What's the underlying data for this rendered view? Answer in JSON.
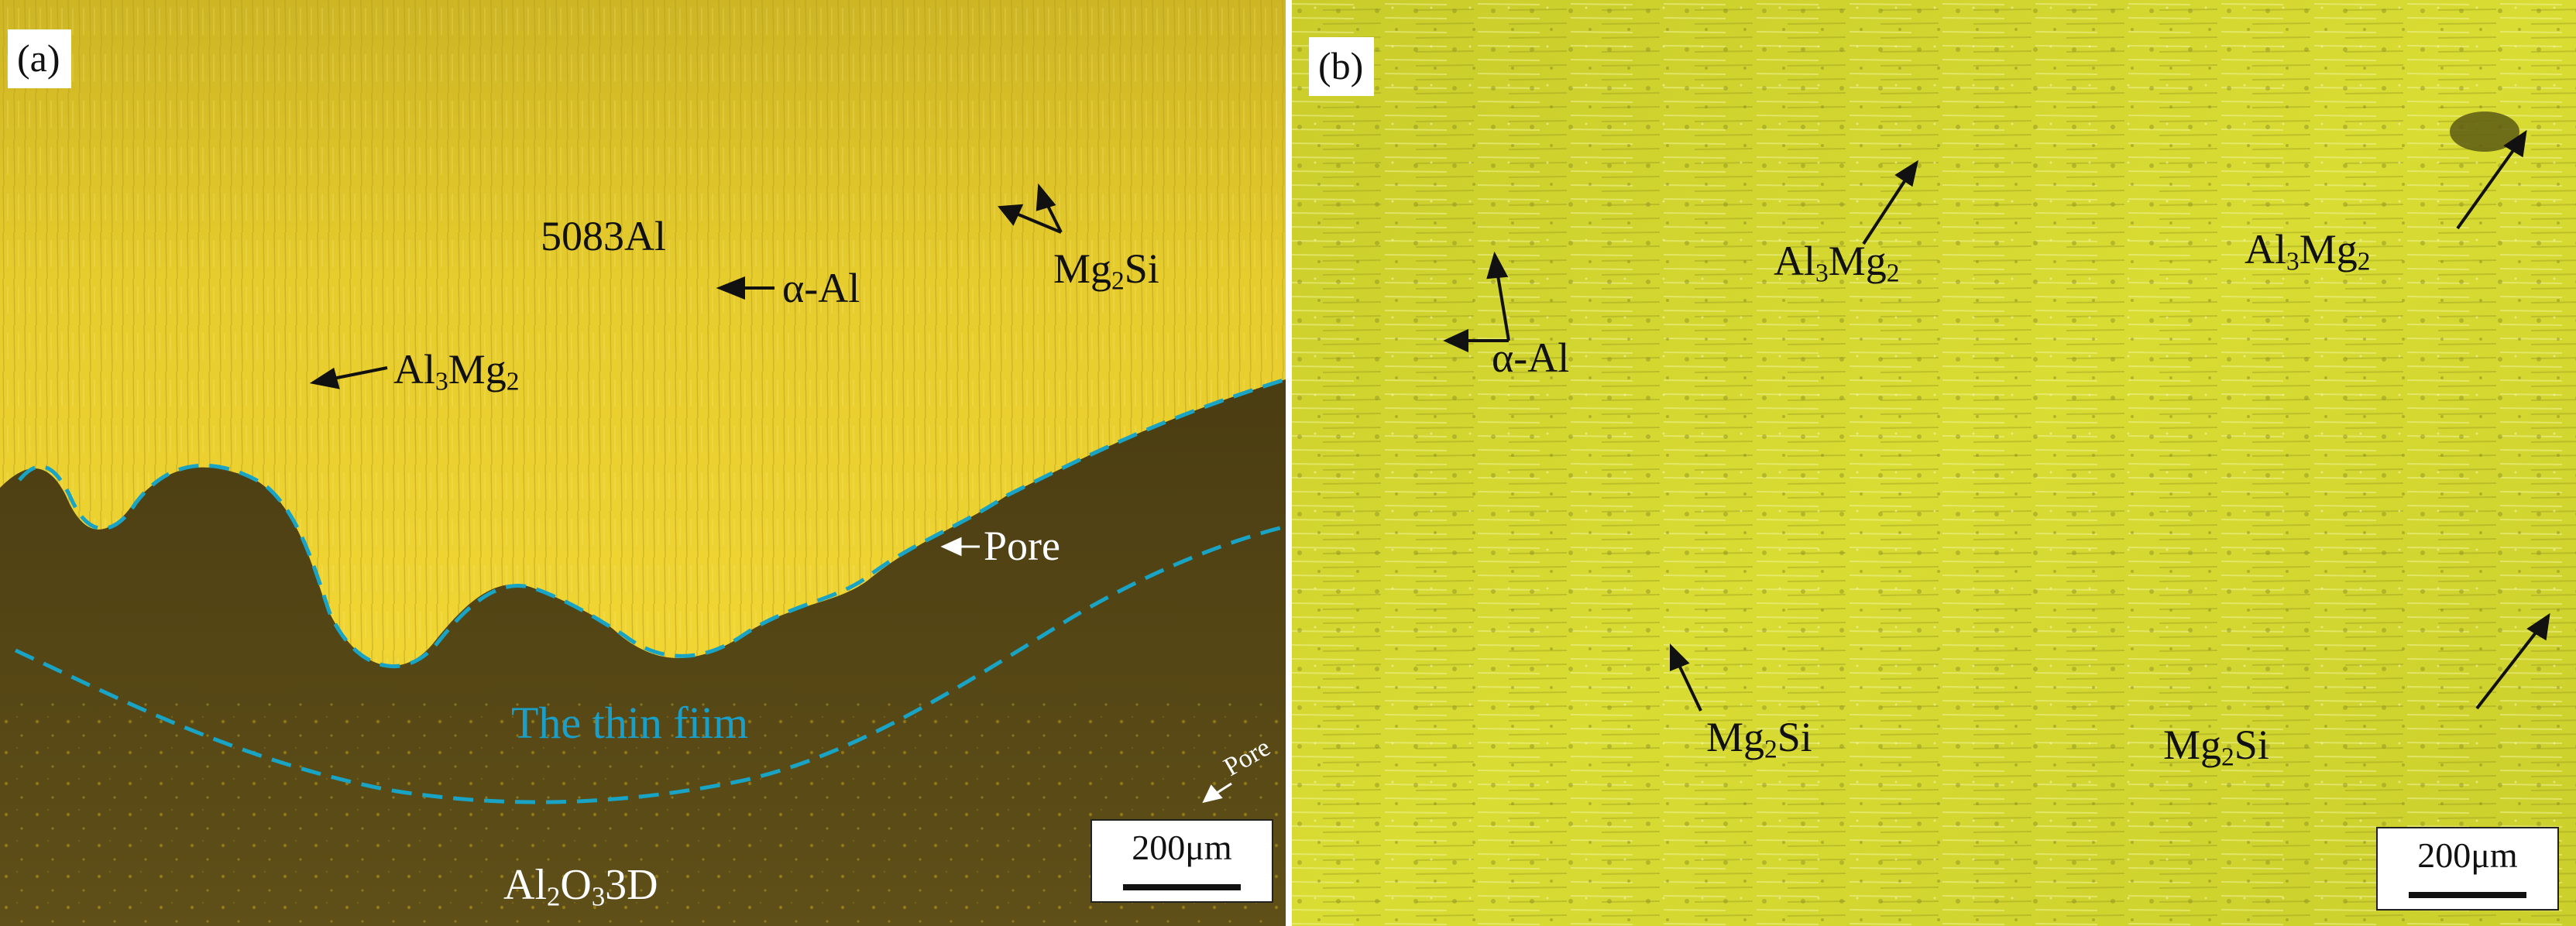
{
  "panels": [
    {
      "letter": "(a)",
      "labels": {
        "matrix": "5083Al",
        "alpha_al": "α-Al",
        "mg2si": {
          "a": "Mg",
          "b": "2",
          "c": "Si"
        },
        "al3mg2": {
          "a": "Al",
          "b": "3",
          "c": "Mg",
          "d": "2"
        },
        "pore_main": "Pore",
        "pore_small": "Pore",
        "thin_film": "The thin fiim",
        "al2o3": {
          "a": "Al",
          "b": "2",
          "c": "O",
          "d": "3",
          "e": "3D"
        }
      },
      "scale_bar": "200μm"
    },
    {
      "letter": "(b)",
      "labels": {
        "alpha_al": "α-Al",
        "al3mg2_1": {
          "a": "Al",
          "b": "3",
          "c": "Mg",
          "d": "2"
        },
        "al3mg2_2": {
          "a": "Al",
          "b": "3",
          "c": "Mg",
          "d": "2"
        },
        "mg2si_1": {
          "a": "Mg",
          "b": "2",
          "c": "Si"
        },
        "mg2si_2": {
          "a": "Mg",
          "b": "2",
          "c": "Si"
        }
      },
      "scale_bar": "200μm"
    }
  ],
  "colors": {
    "panel_a_aluminium": "#e0c62a",
    "panel_a_coating": "#5a4a16",
    "panel_b_background": "#d3d62e",
    "boundary_dash": "#19a3c4",
    "thin_film_text": "#1aa0c8"
  }
}
